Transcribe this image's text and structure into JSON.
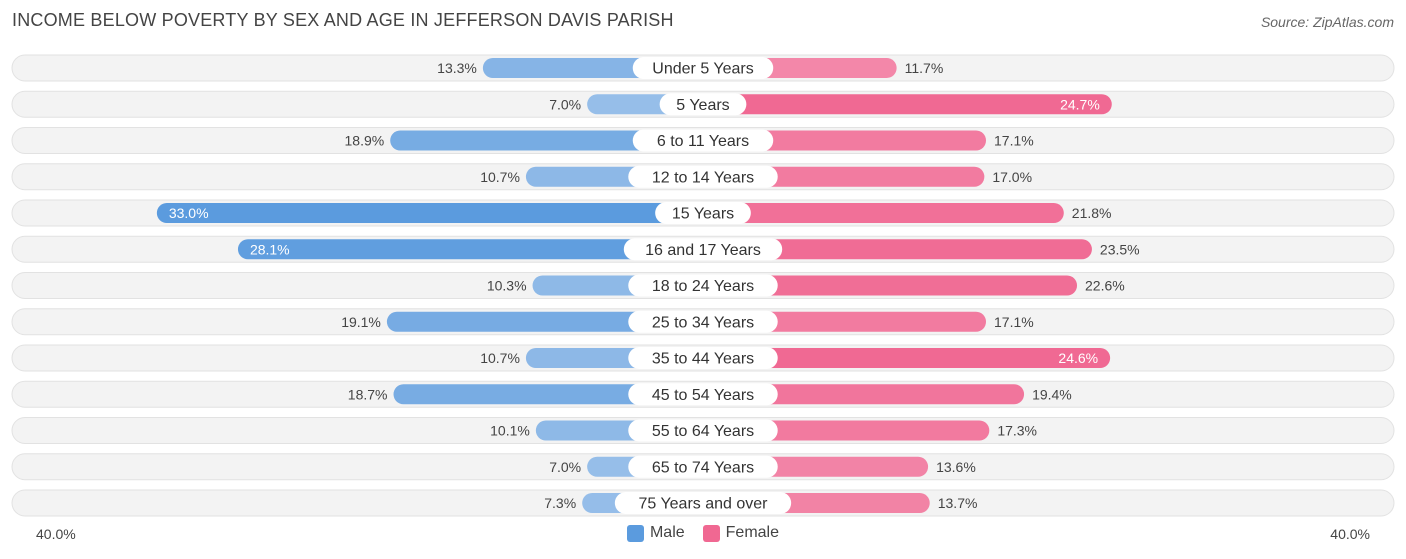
{
  "title": "INCOME BELOW POVERTY BY SEX AND AGE IN JEFFERSON DAVIS PARISH",
  "source": "Source: ZipAtlas.com",
  "axis": {
    "left_label": "40.0%",
    "right_label": "40.0%"
  },
  "legend": {
    "male_label": "Male",
    "female_label": "Female"
  },
  "colors": {
    "male": "#5b9bde",
    "male_light": "#a8c8ec",
    "female": "#f06892",
    "female_light": "#f5a3bd",
    "row_bg": "#efefef"
  },
  "chart_data": {
    "type": "bar",
    "orientation": "diverging-horizontal",
    "title": "INCOME BELOW POVERTY BY SEX AND AGE IN JEFFERSON DAVIS PARISH",
    "xlim": [
      -40,
      40
    ],
    "categories": [
      "Under 5 Years",
      "5 Years",
      "6 to 11 Years",
      "12 to 14 Years",
      "15 Years",
      "16 and 17 Years",
      "18 to 24 Years",
      "25 to 34 Years",
      "35 to 44 Years",
      "45 to 54 Years",
      "55 to 64 Years",
      "65 to 74 Years",
      "75 Years and over"
    ],
    "series": [
      {
        "name": "Male",
        "values": [
          13.3,
          7.0,
          18.9,
          10.7,
          33.0,
          28.1,
          10.3,
          19.1,
          10.7,
          18.7,
          10.1,
          7.0,
          7.3
        ],
        "labels": [
          "13.3%",
          "7.0%",
          "18.9%",
          "10.7%",
          "33.0%",
          "28.1%",
          "10.3%",
          "19.1%",
          "10.7%",
          "18.7%",
          "10.1%",
          "7.0%",
          "7.3%"
        ]
      },
      {
        "name": "Female",
        "values": [
          11.7,
          24.7,
          17.1,
          17.0,
          21.8,
          23.5,
          22.6,
          17.1,
          24.6,
          19.4,
          17.3,
          13.6,
          13.7
        ],
        "labels": [
          "11.7%",
          "24.7%",
          "17.1%",
          "17.0%",
          "21.8%",
          "23.5%",
          "22.6%",
          "17.1%",
          "24.6%",
          "19.4%",
          "17.3%",
          "13.6%",
          "13.7%"
        ]
      }
    ]
  }
}
